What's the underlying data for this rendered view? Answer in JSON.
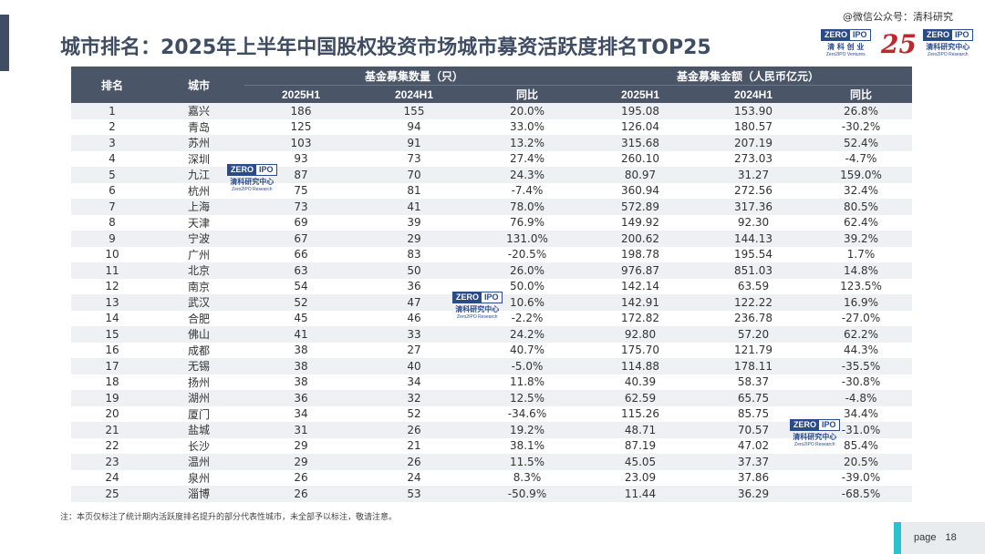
{
  "header": {
    "title": "城市排名：2025年上半年中国股权投资市场城市募资活跃度排名TOP25",
    "wechat": "@微信公众号：清科研究"
  },
  "logos": {
    "zero": "ZERO",
    "ipo": "IPO",
    "ventures_cn": "清 科 创 业",
    "ventures_en": "Zero2IPO Ventures",
    "research_cn": "清科研究中心",
    "research_en": "Zero2IPO Research",
    "anniversary": "25"
  },
  "table": {
    "headers": {
      "rank": "排名",
      "city": "城市",
      "count_group": "基金募集数量（只）",
      "amount_group": "基金募集金额（人民币亿元）",
      "y2025": "2025H1",
      "y2024": "2024H1",
      "yoy": "同比"
    },
    "rows": [
      {
        "rank": "1",
        "city": "嘉兴",
        "c25": "186",
        "c24": "155",
        "cy": "20.0%",
        "a25": "195.08",
        "a24": "153.90",
        "ay": "26.8%",
        "up": false
      },
      {
        "rank": "2",
        "city": "青岛",
        "c25": "125",
        "c24": "94",
        "cy": "33.0%",
        "a25": "126.04",
        "a24": "180.57",
        "ay": "-30.2%",
        "up": false
      },
      {
        "rank": "3",
        "city": "苏州",
        "c25": "103",
        "c24": "91",
        "cy": "13.2%",
        "a25": "315.68",
        "a24": "207.19",
        "ay": "52.4%",
        "up": false
      },
      {
        "rank": "4",
        "city": "深圳",
        "c25": "93",
        "c24": "73",
        "cy": "27.4%",
        "a25": "260.10",
        "a24": "273.03",
        "ay": "-4.7%",
        "up": false
      },
      {
        "rank": "5",
        "city": "九江",
        "c25": "87",
        "c24": "70",
        "cy": "24.3%",
        "a25": "80.97",
        "a24": "31.27",
        "ay": "159.0%",
        "up": false
      },
      {
        "rank": "6",
        "city": "杭州",
        "c25": "75",
        "c24": "81",
        "cy": "-7.4%",
        "a25": "360.94",
        "a24": "272.56",
        "ay": "32.4%",
        "up": false
      },
      {
        "rank": "7",
        "city": "上海",
        "c25": "73",
        "c24": "41",
        "cy": "78.0%",
        "a25": "572.89",
        "a24": "317.36",
        "ay": "80.5%",
        "up": true
      },
      {
        "rank": "8",
        "city": "天津",
        "c25": "69",
        "c24": "39",
        "cy": "76.9%",
        "a25": "149.92",
        "a24": "92.30",
        "ay": "62.4%",
        "up": true
      },
      {
        "rank": "9",
        "city": "宁波",
        "c25": "67",
        "c24": "29",
        "cy": "131.0%",
        "a25": "200.62",
        "a24": "144.13",
        "ay": "39.2%",
        "up": true
      },
      {
        "rank": "10",
        "city": "广州",
        "c25": "66",
        "c24": "83",
        "cy": "-20.5%",
        "a25": "198.78",
        "a24": "195.54",
        "ay": "1.7%",
        "up": false
      },
      {
        "rank": "11",
        "city": "北京",
        "c25": "63",
        "c24": "50",
        "cy": "26.0%",
        "a25": "976.87",
        "a24": "851.03",
        "ay": "14.8%",
        "up": false
      },
      {
        "rank": "12",
        "city": "南京",
        "c25": "54",
        "c24": "36",
        "cy": "50.0%",
        "a25": "142.14",
        "a24": "63.59",
        "ay": "123.5%",
        "up": false
      },
      {
        "rank": "13",
        "city": "武汉",
        "c25": "52",
        "c24": "47",
        "cy": "10.6%",
        "a25": "142.91",
        "a24": "122.22",
        "ay": "16.9%",
        "up": false
      },
      {
        "rank": "14",
        "city": "合肥",
        "c25": "45",
        "c24": "46",
        "cy": "-2.2%",
        "a25": "172.82",
        "a24": "236.78",
        "ay": "-27.0%",
        "up": false
      },
      {
        "rank": "15",
        "city": "佛山",
        "c25": "41",
        "c24": "33",
        "cy": "24.2%",
        "a25": "92.80",
        "a24": "57.20",
        "ay": "62.2%",
        "up": false
      },
      {
        "rank": "16",
        "city": "成都",
        "c25": "38",
        "c24": "27",
        "cy": "40.7%",
        "a25": "175.70",
        "a24": "121.79",
        "ay": "44.3%",
        "up": true
      },
      {
        "rank": "17",
        "city": "无锡",
        "c25": "38",
        "c24": "40",
        "cy": "-5.0%",
        "a25": "114.88",
        "a24": "178.11",
        "ay": "-35.5%",
        "up": false
      },
      {
        "rank": "18",
        "city": "扬州",
        "c25": "38",
        "c24": "34",
        "cy": "11.8%",
        "a25": "40.39",
        "a24": "58.37",
        "ay": "-30.8%",
        "up": false
      },
      {
        "rank": "19",
        "city": "湖州",
        "c25": "36",
        "c24": "32",
        "cy": "12.5%",
        "a25": "62.59",
        "a24": "65.75",
        "ay": "-4.8%",
        "up": false
      },
      {
        "rank": "20",
        "city": "厦门",
        "c25": "34",
        "c24": "52",
        "cy": "-34.6%",
        "a25": "115.26",
        "a24": "85.75",
        "ay": "34.4%",
        "up": false
      },
      {
        "rank": "21",
        "city": "盐城",
        "c25": "31",
        "c24": "26",
        "cy": "19.2%",
        "a25": "48.71",
        "a24": "70.57",
        "ay": "-31.0%",
        "up": false
      },
      {
        "rank": "22",
        "city": "长沙",
        "c25": "29",
        "c24": "21",
        "cy": "38.1%",
        "a25": "87.19",
        "a24": "47.02",
        "ay": "85.4%",
        "up": true
      },
      {
        "rank": "23",
        "city": "温州",
        "c25": "29",
        "c24": "26",
        "cy": "11.5%",
        "a25": "45.05",
        "a24": "37.37",
        "ay": "20.5%",
        "up": false
      },
      {
        "rank": "24",
        "city": "泉州",
        "c25": "26",
        "c24": "24",
        "cy": "8.3%",
        "a25": "23.09",
        "a24": "37.86",
        "ay": "-39.0%",
        "up": false
      },
      {
        "rank": "25",
        "city": "淄博",
        "c25": "26",
        "c24": "53",
        "cy": "-50.9%",
        "a25": "11.44",
        "a24": "36.29",
        "ay": "-68.5%",
        "up": false
      }
    ]
  },
  "footer": {
    "note": "注：本页仅标注了统计期内活跃度排名提升的部分代表性城市，未全部予以标注，敬请注意。",
    "page_label": "page",
    "page_number": "18"
  },
  "colors": {
    "header_bg": "#4a5568",
    "odd_row": "#eef0f3",
    "arrow": "#c0121b",
    "accent": "#29c2cf",
    "title": "#3e4d63"
  }
}
